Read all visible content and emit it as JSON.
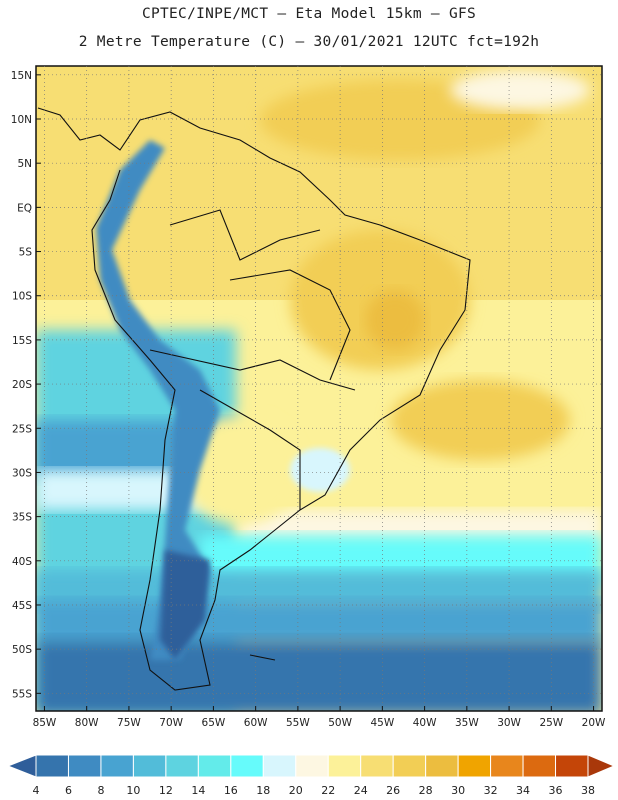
{
  "header": {
    "line1": "CPTEC/INPE/MCT –  Eta Model 15km – GFS",
    "line2": "2 Metre Temperature (C) – 30/01/2021 12UTC fct=192h"
  },
  "axes": {
    "lat_labels": [
      "15N",
      "10N",
      "5N",
      "EQ",
      "5S",
      "10S",
      "15S",
      "20S",
      "25S",
      "30S",
      "35S",
      "40S",
      "45S",
      "50S",
      "55S"
    ],
    "lon_labels": [
      "85W",
      "80W",
      "75W",
      "70W",
      "65W",
      "60W",
      "55W",
      "50W",
      "45W",
      "40W",
      "35W",
      "30W",
      "25W",
      "20W"
    ]
  },
  "legend": {
    "title": "",
    "ticks": [
      "4",
      "6",
      "8",
      "10",
      "12",
      "14",
      "16",
      "18",
      "20",
      "22",
      "24",
      "26",
      "28",
      "30",
      "32",
      "34",
      "36",
      "38"
    ],
    "colors": [
      "#2f5e9a",
      "#3574ad",
      "#3f8bc2",
      "#48a3d1",
      "#52bcd9",
      "#5ed3e0",
      "#63ebea",
      "#66fbfb",
      "#d8f6fd",
      "#fdf7e2",
      "#fcf199",
      "#f7de73",
      "#f2ce55",
      "#ecbd3f",
      "#f0a400",
      "#e8861c",
      "#dc6a10",
      "#c44508",
      "#a9380a"
    ]
  },
  "map": {
    "region": "South America",
    "lon_range": [
      -86,
      -19
    ],
    "lat_range": [
      -57,
      16
    ]
  }
}
